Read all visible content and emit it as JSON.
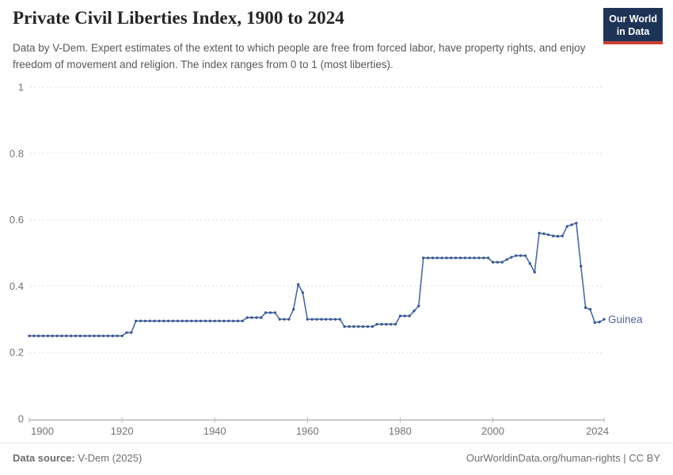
{
  "header": {
    "title": "Private Civil Liberties Index, 1900 to 2024",
    "subtitle": "Data by V-Dem. Expert estimates of the extent to which people are free from forced labor, have property rights, and enjoy freedom of movement and religion. The index ranges from 0 to 1 (most liberties).",
    "logo": {
      "line1": "Our World",
      "line2": "in Data",
      "bg": "#1d3456",
      "accent": "#cd3d34"
    }
  },
  "chart_data": {
    "type": "line",
    "title": "Private Civil Liberties Index, 1900 to 2024",
    "entity": "Guinea",
    "xlabel": "",
    "ylabel": "",
    "xlim": [
      1900,
      2024
    ],
    "ylim": [
      0,
      1
    ],
    "x_ticks": [
      1900,
      1920,
      1940,
      1960,
      1980,
      2000,
      2024
    ],
    "y_ticks": [
      0,
      0.2,
      0.4,
      0.6,
      0.8,
      1
    ],
    "y_tick_labels": [
      "0",
      "0.2",
      "0.4",
      "0.6",
      "0.8",
      "1"
    ],
    "grid": "dashed-horizontal",
    "legend_position": "end-of-line-label",
    "colors": {
      "line": "#4c6a9f",
      "marker": "#3d5a96",
      "label": "#4c6a9f",
      "gridline": "#dedede",
      "axis": "#9b9b9b",
      "tick_text": "#737373"
    },
    "series": [
      {
        "name": "Guinea",
        "points": [
          [
            1900,
            0.25
          ],
          [
            1901,
            0.25
          ],
          [
            1902,
            0.25
          ],
          [
            1903,
            0.25
          ],
          [
            1904,
            0.25
          ],
          [
            1905,
            0.25
          ],
          [
            1906,
            0.25
          ],
          [
            1907,
            0.25
          ],
          [
            1908,
            0.25
          ],
          [
            1909,
            0.25
          ],
          [
            1910,
            0.25
          ],
          [
            1911,
            0.25
          ],
          [
            1912,
            0.25
          ],
          [
            1913,
            0.25
          ],
          [
            1914,
            0.25
          ],
          [
            1915,
            0.25
          ],
          [
            1916,
            0.25
          ],
          [
            1917,
            0.25
          ],
          [
            1918,
            0.25
          ],
          [
            1919,
            0.25
          ],
          [
            1920,
            0.25
          ],
          [
            1921,
            0.26
          ],
          [
            1922,
            0.26
          ],
          [
            1923,
            0.295
          ],
          [
            1924,
            0.295
          ],
          [
            1925,
            0.295
          ],
          [
            1926,
            0.295
          ],
          [
            1927,
            0.295
          ],
          [
            1928,
            0.295
          ],
          [
            1929,
            0.295
          ],
          [
            1930,
            0.295
          ],
          [
            1931,
            0.295
          ],
          [
            1932,
            0.295
          ],
          [
            1933,
            0.295
          ],
          [
            1934,
            0.295
          ],
          [
            1935,
            0.295
          ],
          [
            1936,
            0.295
          ],
          [
            1937,
            0.295
          ],
          [
            1938,
            0.295
          ],
          [
            1939,
            0.295
          ],
          [
            1940,
            0.295
          ],
          [
            1941,
            0.295
          ],
          [
            1942,
            0.295
          ],
          [
            1943,
            0.295
          ],
          [
            1944,
            0.295
          ],
          [
            1945,
            0.295
          ],
          [
            1946,
            0.295
          ],
          [
            1947,
            0.305
          ],
          [
            1948,
            0.305
          ],
          [
            1949,
            0.305
          ],
          [
            1950,
            0.305
          ],
          [
            1951,
            0.32
          ],
          [
            1952,
            0.32
          ],
          [
            1953,
            0.32
          ],
          [
            1954,
            0.3
          ],
          [
            1955,
            0.3
          ],
          [
            1956,
            0.3
          ],
          [
            1957,
            0.33
          ],
          [
            1958,
            0.405
          ],
          [
            1959,
            0.38
          ],
          [
            1960,
            0.3
          ],
          [
            1961,
            0.3
          ],
          [
            1962,
            0.3
          ],
          [
            1963,
            0.3
          ],
          [
            1964,
            0.3
          ],
          [
            1965,
            0.3
          ],
          [
            1966,
            0.3
          ],
          [
            1967,
            0.3
          ],
          [
            1968,
            0.278
          ],
          [
            1969,
            0.278
          ],
          [
            1970,
            0.278
          ],
          [
            1971,
            0.278
          ],
          [
            1972,
            0.278
          ],
          [
            1973,
            0.278
          ],
          [
            1974,
            0.278
          ],
          [
            1975,
            0.285
          ],
          [
            1976,
            0.285
          ],
          [
            1977,
            0.285
          ],
          [
            1978,
            0.285
          ],
          [
            1979,
            0.285
          ],
          [
            1980,
            0.31
          ],
          [
            1981,
            0.31
          ],
          [
            1982,
            0.31
          ],
          [
            1983,
            0.325
          ],
          [
            1984,
            0.34
          ],
          [
            1985,
            0.485
          ],
          [
            1986,
            0.485
          ],
          [
            1987,
            0.485
          ],
          [
            1988,
            0.485
          ],
          [
            1989,
            0.485
          ],
          [
            1990,
            0.485
          ],
          [
            1991,
            0.485
          ],
          [
            1992,
            0.485
          ],
          [
            1993,
            0.485
          ],
          [
            1994,
            0.485
          ],
          [
            1995,
            0.485
          ],
          [
            1996,
            0.485
          ],
          [
            1997,
            0.485
          ],
          [
            1998,
            0.485
          ],
          [
            1999,
            0.485
          ],
          [
            2000,
            0.472
          ],
          [
            2001,
            0.472
          ],
          [
            2002,
            0.472
          ],
          [
            2003,
            0.48
          ],
          [
            2004,
            0.487
          ],
          [
            2005,
            0.492
          ],
          [
            2006,
            0.492
          ],
          [
            2007,
            0.492
          ],
          [
            2008,
            0.468
          ],
          [
            2009,
            0.442
          ],
          [
            2010,
            0.56
          ],
          [
            2011,
            0.558
          ],
          [
            2012,
            0.555
          ],
          [
            2013,
            0.551
          ],
          [
            2014,
            0.55
          ],
          [
            2015,
            0.551
          ],
          [
            2016,
            0.58
          ],
          [
            2017,
            0.585
          ],
          [
            2018,
            0.59
          ],
          [
            2019,
            0.46
          ],
          [
            2020,
            0.335
          ],
          [
            2021,
            0.33
          ],
          [
            2022,
            0.29
          ],
          [
            2023,
            0.292
          ],
          [
            2024,
            0.3
          ]
        ]
      }
    ]
  },
  "footer": {
    "source_label": "Data source:",
    "source_value": "V-Dem (2025)",
    "rights": "OurWorldinData.org/human-rights | CC BY"
  }
}
